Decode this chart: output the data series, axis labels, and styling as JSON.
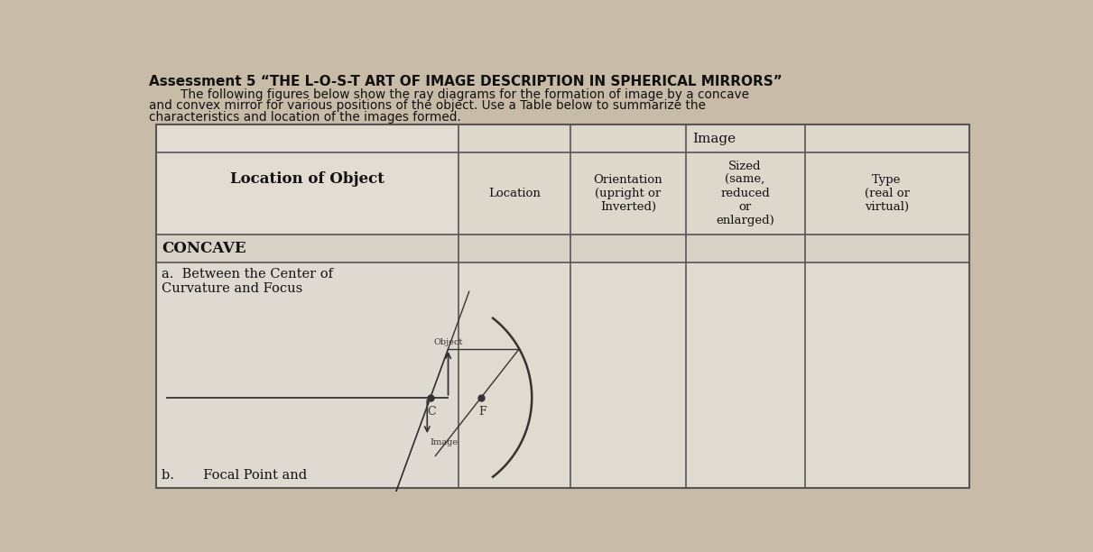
{
  "title_line1": "Assessment 5 “THE L-O-S-T ART OF IMAGE DESCRIPTION IN SPHERICAL MIRRORS”",
  "body_line1": "        The following figures below show the ray diagrams for the formation of image by a concave",
  "body_line2": "and convex mirror for various positions of the object. Use a Table below to summarize the",
  "body_line3": "characteristics and location of the images formed.",
  "col_header_image": "Image",
  "col1_header": "Location of Object",
  "col2_header": "Location",
  "col3_header": "Orientation\n(upright or\nInverted)",
  "col4_header": "Sized\n(same,\nreduced\nor\nenlarged)",
  "col5_header": "Type\n(real or\nvirtual)",
  "section_concave": "CONCAVE",
  "row_a_label": "a.  Between the Center of\nCurvature and Focus",
  "bottom_label": "b.       Focal Point and",
  "bg_color": "#c8bba8",
  "table_fill": "#e8e0d4",
  "cell_fill_light": "#ddd5c8",
  "text_color": "#111111",
  "line_color": "#555555",
  "diagram_line": "#333333"
}
